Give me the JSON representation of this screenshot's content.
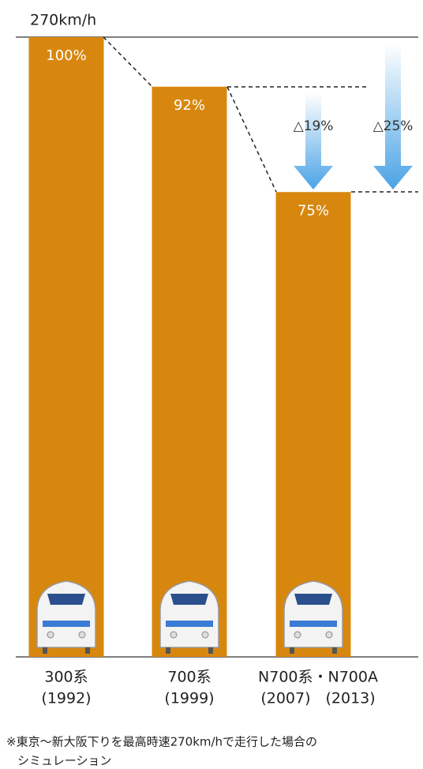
{
  "chart_data": {
    "type": "bar",
    "y_label": "270km/h",
    "categories": [
      "300系",
      "700系",
      "N700系・N700A"
    ],
    "category_years": [
      "(1992)",
      "(1999)",
      "(2007)　(2013)"
    ],
    "values": [
      100,
      92,
      75
    ],
    "value_labels": [
      "100%",
      "92%",
      "75%"
    ],
    "color": "#d8870e",
    "ylim": [
      0,
      100
    ],
    "annotations": [
      "△19%",
      "△25%"
    ],
    "note": [
      "※東京〜新大阪下りを最高時速270km/hで走行した場合の",
      "シミュレーション"
    ]
  }
}
